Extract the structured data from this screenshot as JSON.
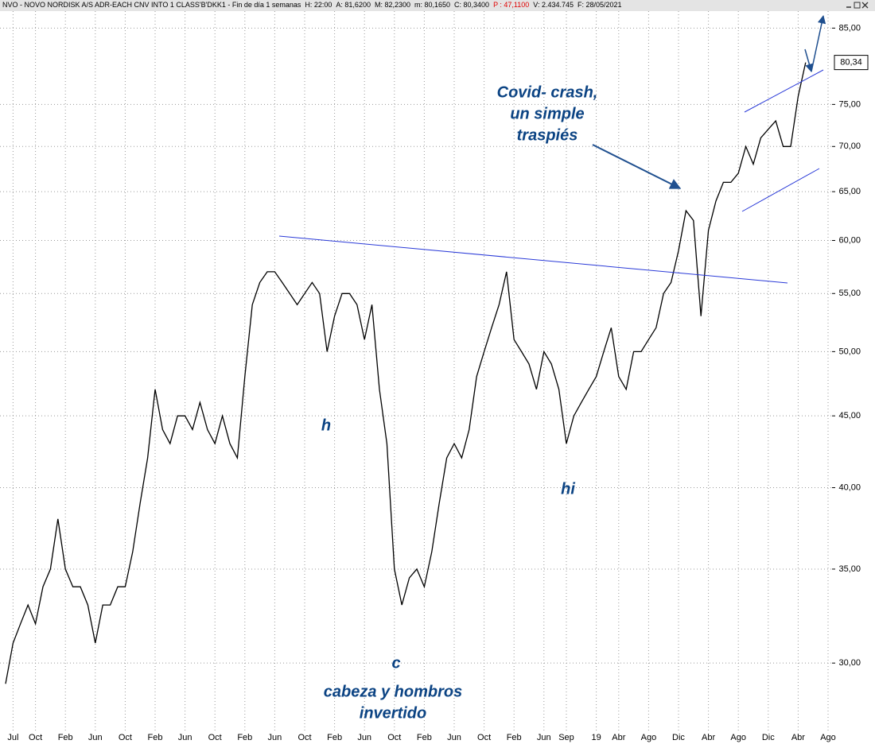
{
  "chart_data": {
    "type": "line",
    "header": [
      "NVO - NOVO NORDISK A/S ADR-EACH CNV INTO 1 CLASS'B'DKK1 - Fin de día 1 semanas",
      "H: 22:00",
      "A: 81,6200",
      "M: 82,2300",
      "m: 80,1650",
      "C: 80,3400",
      "P : 47,1100",
      "V: 2.434.745",
      "F: 28/05/2021"
    ],
    "annotations": [
      "Covid- crash,",
      "un simple",
      "traspiés",
      "h",
      "hi",
      "c",
      "cabeza y hombros",
      "invertido"
    ],
    "categories": [
      null,
      "Jul",
      null,
      null,
      "Oct",
      null,
      null,
      null,
      "Feb",
      null,
      null,
      null,
      "Jun",
      null,
      null,
      null,
      "Oct",
      null,
      null,
      null,
      "Feb",
      null,
      null,
      null,
      "Jun",
      null,
      null,
      null,
      "Oct",
      null,
      null,
      null,
      "Feb",
      null,
      null,
      null,
      "Jun",
      null,
      null,
      null,
      "Oct",
      null,
      null,
      null,
      "Feb",
      null,
      null,
      null,
      "Jun",
      null,
      null,
      null,
      "Oct",
      null,
      null,
      null,
      "Feb",
      null,
      null,
      null,
      "Jun",
      null,
      null,
      null,
      "Oct",
      null,
      null,
      null,
      "Feb",
      null,
      null,
      null,
      "Jun",
      null,
      null,
      "Sep",
      null,
      null,
      null,
      "19",
      null,
      null,
      "Abr",
      null,
      null,
      null,
      "Ago",
      null,
      null,
      null,
      "Dic",
      null,
      null,
      null,
      "Abr",
      null,
      null,
      null,
      "Ago",
      null,
      null,
      null,
      "Dic",
      null,
      null,
      null,
      "Abr",
      null,
      null,
      null,
      "Ago"
    ],
    "series": [
      {
        "name": "NVO",
        "color": "#000000",
        "values": [
          29,
          31,
          32,
          33,
          32,
          34,
          35,
          38,
          35,
          34,
          34,
          33,
          31,
          33,
          33,
          34,
          34,
          36,
          39,
          42,
          47,
          44,
          43,
          45,
          45,
          44,
          46,
          44,
          43,
          45,
          43,
          42,
          48,
          54,
          56,
          57,
          57,
          56,
          55,
          54,
          55,
          56,
          55,
          50,
          53,
          55,
          55,
          54,
          51,
          54,
          47,
          43,
          35,
          33,
          34.5,
          35,
          34,
          36,
          39,
          42,
          43,
          42,
          44,
          48,
          50,
          52,
          54,
          57,
          51,
          50,
          49,
          47,
          50,
          49,
          47,
          43,
          45,
          46,
          47,
          48,
          50,
          52,
          48,
          47,
          50,
          50,
          51,
          52,
          55,
          56,
          59,
          63,
          62,
          53,
          61,
          64,
          66,
          66,
          67,
          70,
          68,
          71,
          72,
          73,
          70,
          70,
          76,
          80.34,
          null,
          null,
          null
        ]
      }
    ],
    "last_price": {
      "value": 80.34,
      "label": "80,34"
    },
    "log_scale": true,
    "grid": true,
    "ylim": [
      27,
      87.4
    ],
    "yticks": [
      {
        "value": 30,
        "label": "30,00"
      },
      {
        "value": 35,
        "label": "35,00"
      },
      {
        "value": 40,
        "label": "40,00"
      },
      {
        "value": 45,
        "label": "45,00"
      },
      {
        "value": 50,
        "label": "50,00"
      },
      {
        "value": 55,
        "label": "55,00"
      },
      {
        "value": 60,
        "label": "60,00"
      },
      {
        "value": 65,
        "label": "65,00"
      },
      {
        "value": 70,
        "label": "70,00"
      },
      {
        "value": 75,
        "label": "75,00"
      },
      {
        "value": 85,
        "label": "85,00"
      }
    ]
  }
}
